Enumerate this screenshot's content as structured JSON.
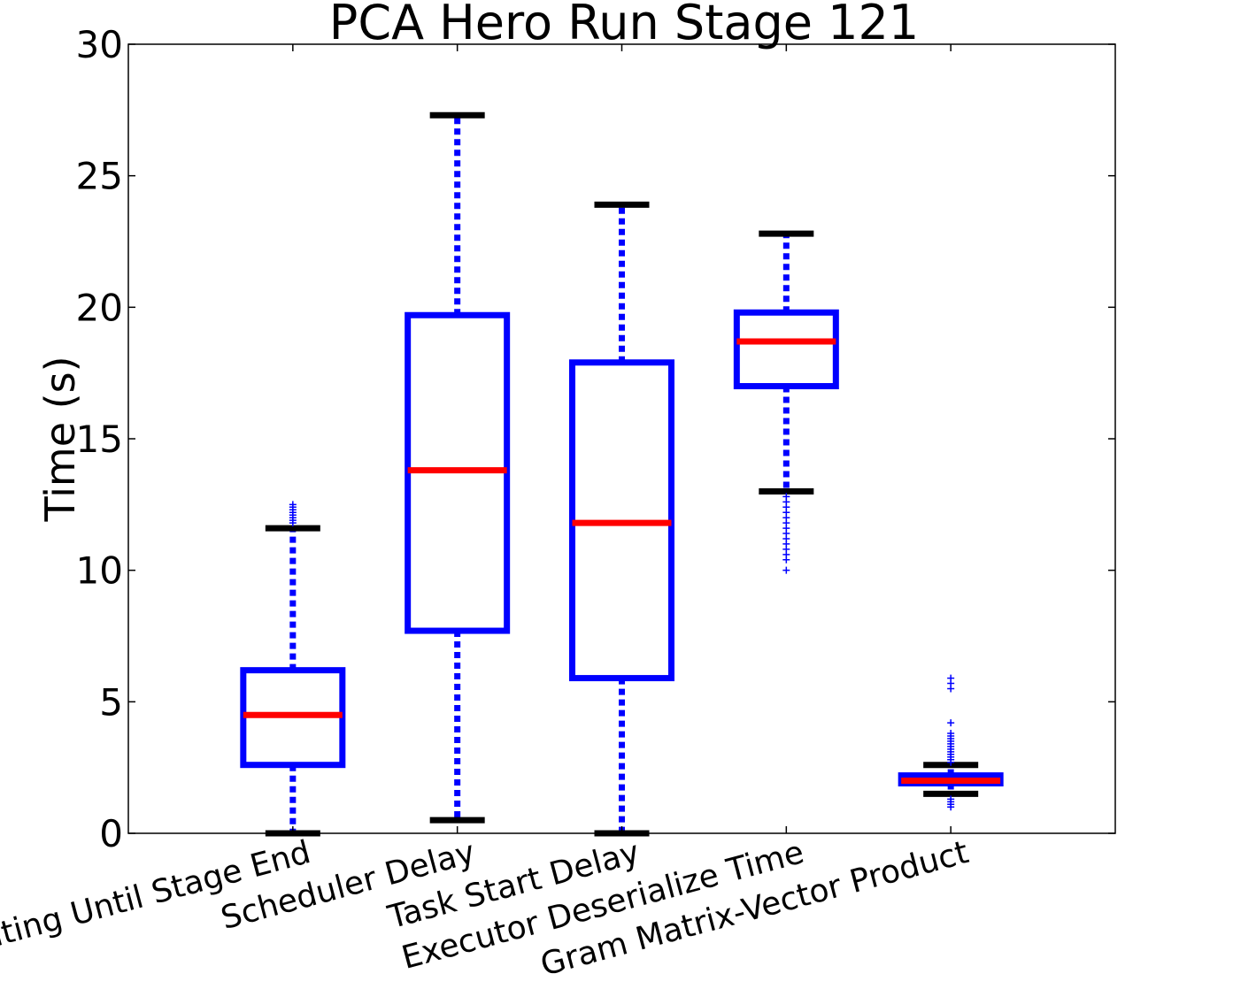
{
  "chart_data": {
    "type": "box",
    "title": "PCA Hero Run Stage 121",
    "xlabel": "",
    "ylabel": "Time (s)",
    "ylim": [
      0,
      30
    ],
    "yticks": [
      0,
      5,
      10,
      15,
      20,
      25,
      30
    ],
    "grid": false,
    "legend": "none",
    "colors": {
      "box": "#0000ff",
      "median": "#ff0000",
      "cap": "#000000",
      "whisker": "#0000ff",
      "outlier": "#0000ff"
    },
    "categories": [
      "Time Waiting Until Stage End",
      "Scheduler Delay",
      "Task Start Delay",
      "Executor Deserialize Time",
      "Gram Matrix-Vector Product"
    ],
    "boxes": [
      {
        "whisker_low": 0.0,
        "q1": 2.6,
        "median": 4.5,
        "q3": 6.2,
        "whisker_high": 11.6,
        "outliers": [
          11.8,
          11.9,
          12.0,
          12.1,
          12.2,
          12.3,
          12.4,
          12.5
        ]
      },
      {
        "whisker_low": 0.5,
        "q1": 7.7,
        "median": 13.8,
        "q3": 19.7,
        "whisker_high": 27.3,
        "outliers": []
      },
      {
        "whisker_low": 0.0,
        "q1": 5.9,
        "median": 11.8,
        "q3": 17.9,
        "whisker_high": 23.9,
        "outliers": []
      },
      {
        "whisker_low": 13.0,
        "q1": 17.0,
        "median": 18.7,
        "q3": 19.8,
        "whisker_high": 22.8,
        "outliers": [
          12.8,
          12.6,
          12.4,
          12.2,
          12.0,
          11.8,
          11.6,
          11.4,
          11.2,
          11.0,
          10.8,
          10.6,
          10.4,
          10.0
        ]
      },
      {
        "whisker_low": 1.5,
        "q1": 1.9,
        "median": 2.0,
        "q3": 2.2,
        "whisker_high": 2.6,
        "outliers": [
          5.9,
          5.7,
          5.5,
          4.2,
          3.8,
          3.7,
          3.6,
          3.5,
          3.4,
          3.3,
          3.2,
          3.1,
          3.0,
          2.9,
          2.8,
          2.7,
          1.3,
          1.2,
          1.1,
          1.0
        ]
      }
    ]
  }
}
